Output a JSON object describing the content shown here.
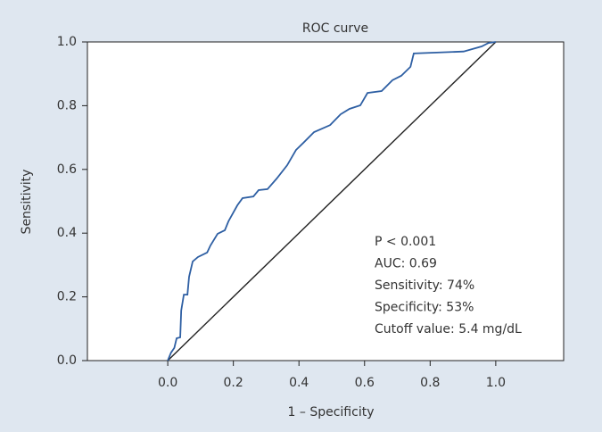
{
  "chart_data": {
    "type": "line",
    "title": "ROC curve",
    "x_label": "1 – Specificity",
    "y_label": "Sensitivity",
    "series": [
      {
        "color": "#2e5fa3",
        "x": [
          0,
          0.01,
          0.02,
          0.027,
          0.038,
          0.041,
          0.049,
          0.06,
          0.065,
          0.076,
          0.092,
          0.12,
          0.13,
          0.152,
          0.174,
          0.185,
          0.212,
          0.228,
          0.261,
          0.277,
          0.304,
          0.332,
          0.364,
          0.391,
          0.413,
          0.446,
          0.495,
          0.527,
          0.554,
          0.587,
          0.609,
          0.652,
          0.685,
          0.712,
          0.74,
          0.75,
          0.902,
          0.957,
          0.978,
          1.0
        ],
        "values": [
          0,
          0.025,
          0.04,
          0.07,
          0.073,
          0.157,
          0.207,
          0.207,
          0.263,
          0.311,
          0.325,
          0.339,
          0.361,
          0.398,
          0.409,
          0.437,
          0.487,
          0.51,
          0.515,
          0.535,
          0.538,
          0.571,
          0.613,
          0.661,
          0.683,
          0.717,
          0.739,
          0.773,
          0.79,
          0.801,
          0.84,
          0.846,
          0.88,
          0.894,
          0.922,
          0.964,
          0.97,
          0.986,
          0.997,
          1.0
        ]
      },
      {
        "color": "#222222",
        "x": [
          0,
          1
        ],
        "values": [
          0,
          1
        ]
      }
    ],
    "xlim": [
      -0.245,
      1.207
    ],
    "ylim": [
      0,
      1
    ],
    "xticks": [
      {
        "value": 0,
        "label": "0.0"
      },
      0.2,
      0.4,
      0.6,
      0.8,
      {
        "value": 1,
        "label": "1.0"
      }
    ],
    "yticks": [
      {
        "value": 0,
        "label": "0.0"
      },
      0.2,
      0.4,
      0.6,
      0.8,
      {
        "value": 1,
        "label": "1.0"
      }
    ],
    "annotations": [
      "P < 0.001",
      "AUC: 0.69",
      "Sensitivity: 74%",
      "Specificity: 53%",
      "Cutoff value: 5.4 mg/dL"
    ]
  }
}
